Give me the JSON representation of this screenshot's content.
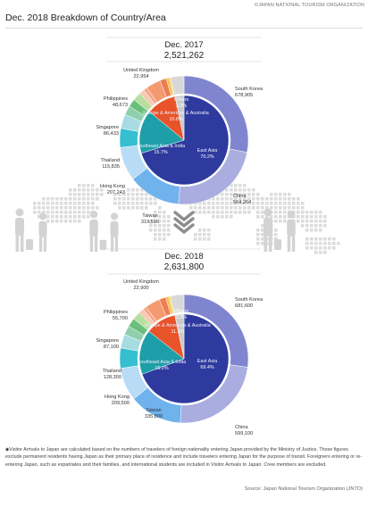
{
  "header": {
    "copyright": "©JAPAN NATIONAL TOURISM ORGANIZATION",
    "title": "Dec. 2018 Breakdown of Country/Area"
  },
  "footnote": "◆Visitor Arrivals to Japan are calculated based on the numbers of travelers of foreign nationality entering Japan provided by the Ministry of Justice. Those figures exclude permanent residents having Japan as their primary place of residence and include travelers entering Japan for the purpose of transit. Foreigners entering or re-entering Japan, such as expatriates and their families, and international students are included in Visitor Arrivals to Japan. Crew members are excluded.",
  "source": "Source: Japan National Tourism Organization (JNTO)",
  "colors": {
    "east_asia_inner": "#2e3a9e",
    "southeast_inner": "#1e9ea8",
    "europe_inner": "#e8532a",
    "others_inner": "#c9c9c9",
    "south_korea": "#7f85cf",
    "china": "#a9addf",
    "taiwan": "#6fb2ec",
    "hong_kong": "#b9dcf6",
    "thailand": "#35bfd0",
    "singapore": "#a7dbe2",
    "philippines": "#6abf7a",
    "europe_small": "#f4a78c",
    "others_small": "#f6c24b",
    "arrow": "#8d8d8d",
    "map": "#dcdcdc"
  },
  "chart_data": [
    {
      "type": "pie",
      "subtype": "nested-donut",
      "title": "Dec. 2017",
      "total": "2,521,262",
      "inner": [
        {
          "name": "East Asia",
          "value": 70.2,
          "label": "70.2%",
          "color": "#2e3a9e"
        },
        {
          "name": "Southeast Asia & India",
          "value": 15.7,
          "label": "15.7%",
          "color": "#1e9ea8"
        },
        {
          "name": "Europe & Americas & Australia",
          "value": 10.8,
          "label": "10.8%",
          "color": "#e8532a"
        },
        {
          "name": "Others",
          "value": 3.2,
          "label": "3.2%",
          "color": "#c9c9c9"
        }
      ],
      "outer": [
        {
          "name": "South Korea",
          "value": 678905,
          "label": "678,905",
          "color": "#7f85cf"
        },
        {
          "name": "China",
          "value": 564264,
          "label": "564,264",
          "color": "#a9addf"
        },
        {
          "name": "Taiwan",
          "value": 319516,
          "label": "319,516",
          "color": "#6fb2ec"
        },
        {
          "name": "Hong Kong",
          "value": 207243,
          "label": "207,243",
          "color": "#b9dcf6"
        },
        {
          "name": "",
          "value": 0,
          "label": "",
          "color": "#2b9fc4"
        },
        {
          "name": "Thailand",
          "value": 115835,
          "label": "115,835",
          "color": "#35bfd0"
        },
        {
          "name": "Singapore",
          "value": 86433,
          "label": "86,433",
          "color": "#a7dbe2"
        },
        {
          "name": "",
          "value": 55000,
          "label": "",
          "color": "#8fcfb0"
        },
        {
          "name": "Philippines",
          "value": 48673,
          "label": "48,673",
          "color": "#6abf7a"
        },
        {
          "name": "",
          "value": 52000,
          "label": "",
          "color": "#b8dfa0"
        },
        {
          "name": "",
          "value": 30000,
          "label": "",
          "color": "#f8c8b0"
        },
        {
          "name": "United Kingdom",
          "value": 22954,
          "label": "22,954",
          "color": "#f4a78c"
        },
        {
          "name": "",
          "value": 90000,
          "label": "",
          "color": "#f49a70"
        },
        {
          "name": "",
          "value": 40000,
          "label": "",
          "color": "#ef7d52"
        },
        {
          "name": "",
          "value": 18000,
          "label": "",
          "color": "#f6c24b"
        },
        {
          "name": "",
          "value": 10000,
          "label": "",
          "color": "#f3d27a"
        },
        {
          "name": "",
          "value": 80000,
          "label": "",
          "color": "#d8d8d8"
        }
      ]
    },
    {
      "type": "pie",
      "subtype": "nested-donut",
      "title": "Dec. 2018",
      "total": "2,631,800",
      "inner": [
        {
          "name": "East Asia",
          "value": 69.4,
          "label": "69.4%",
          "color": "#2e3a9e"
        },
        {
          "name": "Southeast Asia & India",
          "value": 16.2,
          "label": "16.2%",
          "color": "#1e9ea8"
        },
        {
          "name": "Europe & Americas & Australia",
          "value": 11.1,
          "label": "11.1%",
          "color": "#e8532a"
        },
        {
          "name": "Others",
          "value": 3.3,
          "label": "3.3%",
          "color": "#c9c9c9"
        }
      ],
      "outer": [
        {
          "name": "South Korea",
          "value": 681600,
          "label": "681,600",
          "color": "#7f85cf"
        },
        {
          "name": "China",
          "value": 599100,
          "label": "599,100",
          "color": "#a9addf"
        },
        {
          "name": "Taiwan",
          "value": 335800,
          "label": "335,800",
          "color": "#6fb2ec"
        },
        {
          "name": "Hong Kong",
          "value": 209500,
          "label": "209,500",
          "color": "#b9dcf6"
        },
        {
          "name": "",
          "value": 0,
          "label": "",
          "color": "#2b9fc4"
        },
        {
          "name": "Thailand",
          "value": 128300,
          "label": "128,300",
          "color": "#35bfd0"
        },
        {
          "name": "Singapore",
          "value": 87100,
          "label": "87,100",
          "color": "#a7dbe2"
        },
        {
          "name": "",
          "value": 58000,
          "label": "",
          "color": "#8fcfb0"
        },
        {
          "name": "Philippines",
          "value": 55700,
          "label": "55,700",
          "color": "#6abf7a"
        },
        {
          "name": "",
          "value": 52000,
          "label": "",
          "color": "#b8dfa0"
        },
        {
          "name": "",
          "value": 32000,
          "label": "",
          "color": "#f8c8b0"
        },
        {
          "name": "United Kingdom",
          "value": 22900,
          "label": "22,900",
          "color": "#f4a78c"
        },
        {
          "name": "",
          "value": 95000,
          "label": "",
          "color": "#f49a70"
        },
        {
          "name": "",
          "value": 42000,
          "label": "",
          "color": "#ef7d52"
        },
        {
          "name": "",
          "value": 20000,
          "label": "",
          "color": "#f6c24b"
        },
        {
          "name": "",
          "value": 11000,
          "label": "",
          "color": "#f3d27a"
        },
        {
          "name": "",
          "value": 85000,
          "label": "",
          "color": "#d8d8d8"
        }
      ]
    }
  ]
}
